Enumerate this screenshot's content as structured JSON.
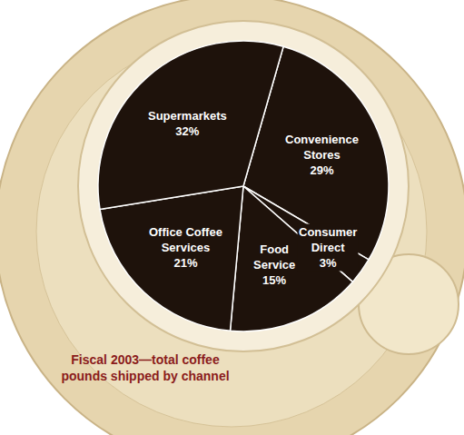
{
  "chart_data": {
    "type": "pie",
    "title": "Fiscal 2003—total coffee pounds shipped by channel",
    "categories": [
      "Convenience Stores",
      "Consumer Direct",
      "Food Service",
      "Office Coffee Services",
      "Supermarkets"
    ],
    "values": [
      29,
      3,
      15,
      21,
      32
    ],
    "value_labels": [
      "29%",
      "3%",
      "15%",
      "21%",
      "32%"
    ],
    "color": "#1e120b",
    "data_labels": true
  }
}
